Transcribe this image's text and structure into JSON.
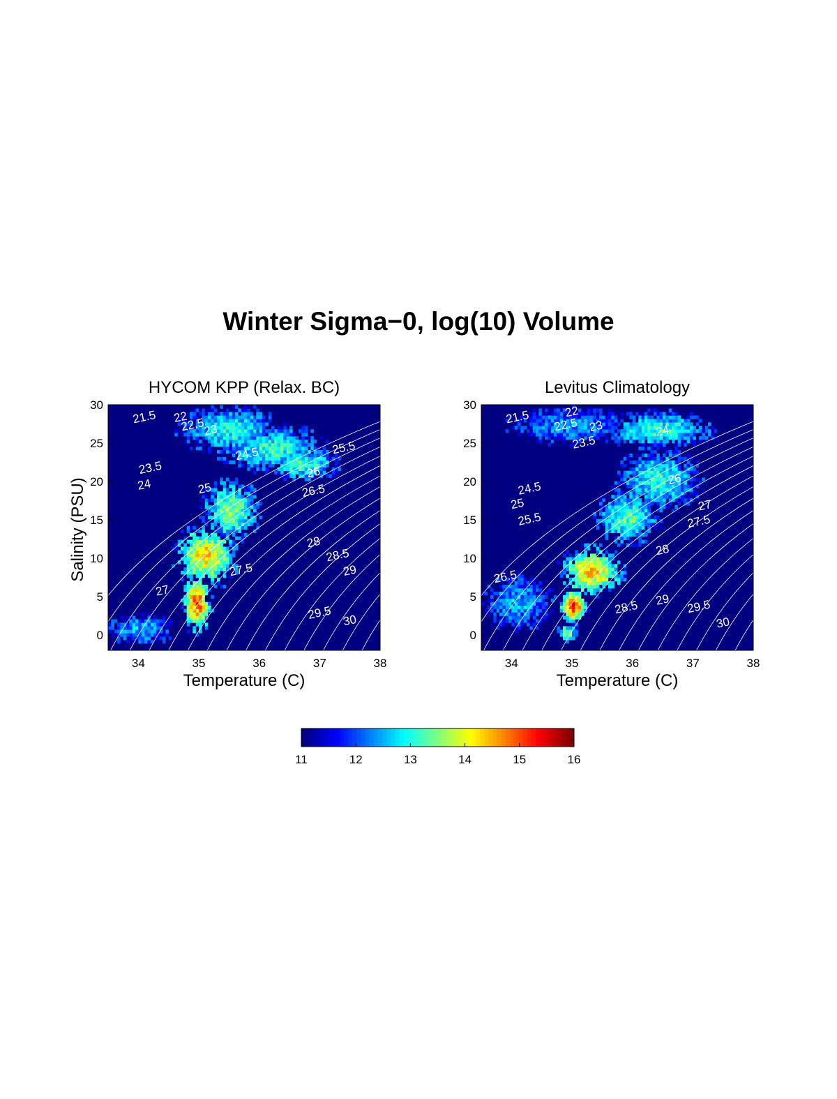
{
  "figure": {
    "suptitle": "Winter Sigma−0, log(10) Volume",
    "background_color": "#000080",
    "contour_color": "#ffffff",
    "colormap": "jet"
  },
  "chart_data": [
    {
      "type": "heatmap",
      "title": "HYCOM KPP (Relax. BC)",
      "xlabel": "Temperature (C)",
      "ylabel": "Salinity (PSU)",
      "xlim": [
        33.5,
        38
      ],
      "ylim": [
        -2,
        30
      ],
      "xticks": [
        "34",
        "35",
        "36",
        "37",
        "38"
      ],
      "yticks": [
        "0",
        "5",
        "10",
        "15",
        "20",
        "25",
        "30"
      ],
      "contour_labels": [
        {
          "text": "21.5",
          "x": 34.1,
          "y": 28.3
        },
        {
          "text": "22",
          "x": 34.7,
          "y": 28.3
        },
        {
          "text": "22.5",
          "x": 34.9,
          "y": 27.3
        },
        {
          "text": "23",
          "x": 35.2,
          "y": 26.6
        },
        {
          "text": "23.5",
          "x": 34.2,
          "y": 21.7
        },
        {
          "text": "24",
          "x": 34.1,
          "y": 19.5
        },
        {
          "text": "24.5",
          "x": 35.8,
          "y": 23.5
        },
        {
          "text": "25",
          "x": 35.1,
          "y": 19.0
        },
        {
          "text": "25.5",
          "x": 37.4,
          "y": 24.3
        },
        {
          "text": "26",
          "x": 36.9,
          "y": 21.1
        },
        {
          "text": "26.5",
          "x": 36.9,
          "y": 18.7
        },
        {
          "text": "27",
          "x": 34.4,
          "y": 5.7
        },
        {
          "text": "27.5",
          "x": 35.7,
          "y": 8.4
        },
        {
          "text": "28",
          "x": 36.9,
          "y": 12.0
        },
        {
          "text": "28.5",
          "x": 37.3,
          "y": 10.3
        },
        {
          "text": "29",
          "x": 37.5,
          "y": 8.3
        },
        {
          "text": "29.5",
          "x": 37.0,
          "y": 2.8
        },
        {
          "text": "30",
          "x": 37.5,
          "y": 1.8
        }
      ],
      "blobs": [
        {
          "t": 35.5,
          "s": 26.5,
          "st": 0.7,
          "ss": 2.6,
          "v": 13.0
        },
        {
          "t": 36.2,
          "s": 24.0,
          "st": 0.75,
          "ss": 2.6,
          "v": 13.1
        },
        {
          "t": 36.7,
          "s": 22.0,
          "st": 0.5,
          "ss": 1.8,
          "v": 13.2
        },
        {
          "t": 35.5,
          "s": 16.0,
          "st": 0.4,
          "ss": 3.5,
          "v": 13.5
        },
        {
          "t": 35.1,
          "s": 10.0,
          "st": 0.45,
          "ss": 3.5,
          "v": 14.3
        },
        {
          "t": 34.95,
          "s": 4.0,
          "st": 0.2,
          "ss": 3.5,
          "v": 15.0
        },
        {
          "t": 34.0,
          "s": 0.5,
          "st": 0.5,
          "ss": 1.6,
          "v": 12.5
        }
      ]
    },
    {
      "type": "heatmap",
      "title": "Levitus Climatology",
      "xlabel": "Temperature (C)",
      "ylabel": "",
      "xlim": [
        33.5,
        38
      ],
      "ylim": [
        -2,
        30
      ],
      "xticks": [
        "34",
        "35",
        "36",
        "37",
        "38"
      ],
      "yticks": [
        "0",
        "5",
        "10",
        "15",
        "20",
        "25",
        "30"
      ],
      "contour_labels": [
        {
          "text": "21.5",
          "x": 34.1,
          "y": 28.3
        },
        {
          "text": "22",
          "x": 35.0,
          "y": 29.0
        },
        {
          "text": "22.5",
          "x": 34.9,
          "y": 27.3
        },
        {
          "text": "23",
          "x": 35.4,
          "y": 27.1
        },
        {
          "text": "23.5",
          "x": 35.2,
          "y": 25.0
        },
        {
          "text": "24",
          "x": 36.5,
          "y": 26.5
        },
        {
          "text": "24.5",
          "x": 34.3,
          "y": 19.0
        },
        {
          "text": "25",
          "x": 34.1,
          "y": 17.0
        },
        {
          "text": "25.5",
          "x": 34.3,
          "y": 15.0
        },
        {
          "text": "26",
          "x": 36.7,
          "y": 20.2
        },
        {
          "text": "26.5",
          "x": 33.9,
          "y": 7.5
        },
        {
          "text": "27",
          "x": 37.2,
          "y": 16.8
        },
        {
          "text": "27.5",
          "x": 37.1,
          "y": 14.7
        },
        {
          "text": "28",
          "x": 36.5,
          "y": 11.0
        },
        {
          "text": "28.5",
          "x": 35.9,
          "y": 3.5
        },
        {
          "text": "29",
          "x": 36.5,
          "y": 4.5
        },
        {
          "text": "29.5",
          "x": 37.1,
          "y": 3.6
        },
        {
          "text": "30",
          "x": 37.5,
          "y": 1.5
        }
      ],
      "blobs": [
        {
          "t": 36.4,
          "s": 26.5,
          "st": 0.8,
          "ss": 2.0,
          "v": 13.1
        },
        {
          "t": 35.0,
          "s": 27.0,
          "st": 0.9,
          "ss": 2.0,
          "v": 12.3
        },
        {
          "t": 36.4,
          "s": 20.0,
          "st": 0.6,
          "ss": 3.5,
          "v": 13.0
        },
        {
          "t": 35.9,
          "s": 15.0,
          "st": 0.45,
          "ss": 3.0,
          "v": 13.3
        },
        {
          "t": 35.3,
          "s": 8.0,
          "st": 0.45,
          "ss": 2.8,
          "v": 14.4
        },
        {
          "t": 35.0,
          "s": 3.5,
          "st": 0.2,
          "ss": 2.0,
          "v": 15.2
        },
        {
          "t": 34.1,
          "s": 4.0,
          "st": 0.5,
          "ss": 3.0,
          "v": 12.4
        },
        {
          "t": 34.9,
          "s": 0.0,
          "st": 0.15,
          "ss": 1.2,
          "v": 13.6
        }
      ]
    }
  ],
  "colorbar": {
    "ticks": [
      "11",
      "12",
      "13",
      "14",
      "15",
      "16"
    ],
    "vmin": 11,
    "vmax": 16
  }
}
